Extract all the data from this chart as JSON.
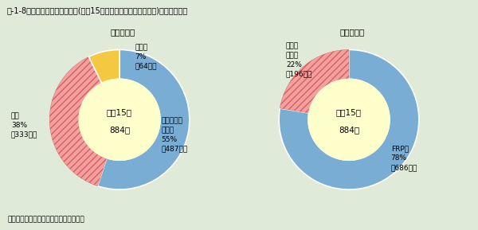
{
  "title": "序-1-8図　不法投棄された廃船(平成15年に新たに確認されたもの)の種類別隻数",
  "subtitle_left": "（用途別）",
  "subtitle_right": "（材質別）",
  "footer": "（資料）海上保安庁資料より環境省作成",
  "background_color": "#e0ead8",
  "center_label_line1": "平成15年",
  "center_label_line2": "884隻",
  "center_bg": "#ffffcc",
  "chart1": {
    "values": [
      487,
      333,
      64
    ],
    "colors": [
      "#7aadd4",
      "#f5a0a0",
      "#f5c842"
    ],
    "hatch": [
      "",
      "////",
      ""
    ]
  },
  "chart2": {
    "values": [
      686,
      198
    ],
    "colors": [
      "#7aadd4",
      "#f5a0a0"
    ],
    "hatch": [
      "",
      "////"
    ]
  }
}
